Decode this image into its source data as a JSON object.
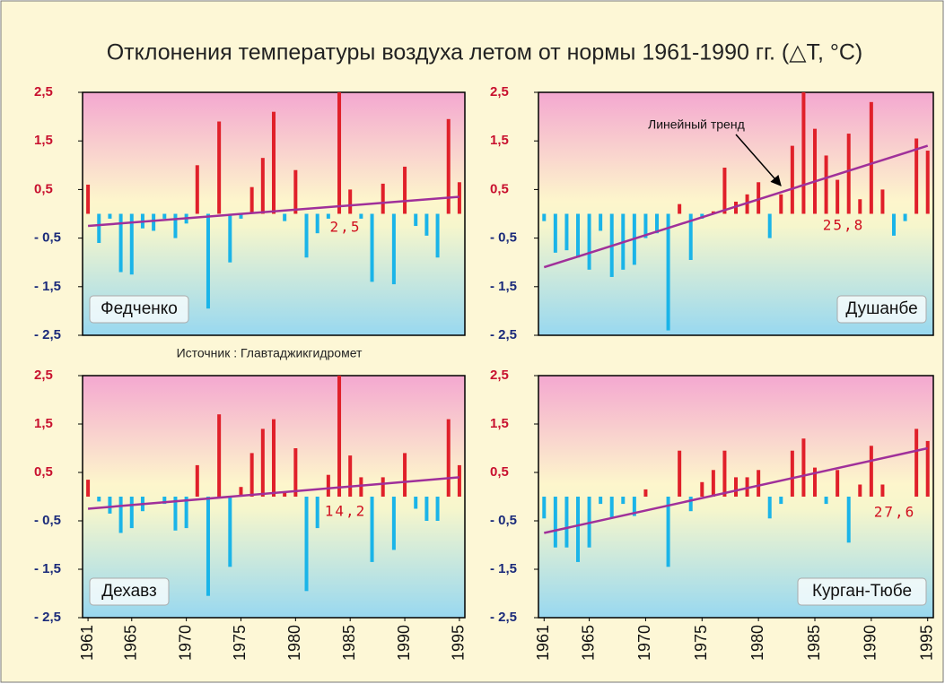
{
  "title": "Отклонения температуры воздуха летом от нормы 1961-1990 гг. (△T, °C)",
  "source": "Источник : Главтаджикгидромет",
  "chart_data": [
    {
      "type": "bar",
      "name": "Федченко",
      "label_corner": "bottom-left",
      "annotation": "2,5",
      "x": [
        1961,
        1962,
        1963,
        1964,
        1965,
        1966,
        1967,
        1968,
        1969,
        1970,
        1971,
        1972,
        1973,
        1974,
        1975,
        1976,
        1977,
        1978,
        1979,
        1980,
        1981,
        1982,
        1983,
        1984,
        1985,
        1986,
        1987,
        1988,
        1989,
        1990,
        1991,
        1992,
        1993,
        1994,
        1995
      ],
      "values": [
        0.6,
        -0.6,
        -0.1,
        -1.2,
        -1.25,
        -0.3,
        -0.35,
        -0.1,
        -0.5,
        -0.2,
        1.0,
        -1.95,
        1.9,
        -1.0,
        -0.1,
        0.55,
        1.15,
        2.1,
        -0.15,
        0.9,
        -0.9,
        -0.4,
        -0.1,
        2.5,
        0.5,
        -0.1,
        -1.4,
        0.62,
        -1.45,
        0.97,
        -0.25,
        -0.45,
        -0.9,
        1.95,
        0.65
      ],
      "positive_color": "#e0202a",
      "negative_color": "#1ab4e8",
      "trend": {
        "x": [
          1961,
          1995
        ],
        "values": [
          -0.25,
          0.35
        ],
        "color": "#a0309a"
      },
      "xlim": [
        1960.5,
        1995.5
      ],
      "ylim": [
        -2.5,
        2.5
      ],
      "yticks": [
        {
          "value": 2.5,
          "label": "2,5"
        },
        {
          "value": 1.5,
          "label": "1,5"
        },
        {
          "value": 0.5,
          "label": "0,5"
        },
        {
          "value": -0.5,
          "label": "- 0,5"
        },
        {
          "value": -1.5,
          "label": "- 1,5"
        },
        {
          "value": -2.5,
          "label": "- 2,5"
        }
      ]
    },
    {
      "type": "bar",
      "name": "Душанбе",
      "label_corner": "bottom-right",
      "annotation": "25,8",
      "trend_label": "Линейный тренд",
      "x": [
        1961,
        1962,
        1963,
        1964,
        1965,
        1966,
        1967,
        1968,
        1969,
        1970,
        1971,
        1972,
        1973,
        1974,
        1975,
        1976,
        1977,
        1978,
        1979,
        1980,
        1981,
        1982,
        1983,
        1984,
        1985,
        1986,
        1987,
        1988,
        1989,
        1990,
        1991,
        1992,
        1993,
        1994,
        1995
      ],
      "values": [
        -0.15,
        -0.8,
        -0.75,
        -0.9,
        -1.15,
        -0.35,
        -1.3,
        -1.15,
        -1.05,
        -0.5,
        -0.4,
        -2.4,
        0.2,
        -0.95,
        -0.1,
        0.05,
        0.95,
        0.25,
        0.4,
        0.65,
        -0.5,
        0.4,
        1.4,
        2.5,
        1.75,
        1.2,
        0.7,
        1.65,
        0.3,
        2.3,
        0.5,
        -0.45,
        -0.15,
        1.55,
        1.3
      ],
      "positive_color": "#e0202a",
      "negative_color": "#1ab4e8",
      "trend": {
        "x": [
          1961,
          1995
        ],
        "values": [
          -1.1,
          1.4
        ],
        "color": "#a0309a"
      },
      "xlim": [
        1960.5,
        1995.5
      ],
      "ylim": [
        -2.5,
        2.5
      ],
      "yticks": [
        {
          "value": 2.5,
          "label": "2,5"
        },
        {
          "value": 1.5,
          "label": "1,5"
        },
        {
          "value": 0.5,
          "label": "0,5"
        },
        {
          "value": -0.5,
          "label": "- 0,5"
        },
        {
          "value": -1.5,
          "label": "- 1,5"
        },
        {
          "value": -2.5,
          "label": "- 2,5"
        }
      ]
    },
    {
      "type": "bar",
      "name": "Дехавз",
      "label_corner": "bottom-left",
      "annotation": "14,2",
      "x": [
        1961,
        1962,
        1963,
        1964,
        1965,
        1966,
        1967,
        1968,
        1969,
        1970,
        1971,
        1972,
        1973,
        1974,
        1975,
        1976,
        1977,
        1978,
        1979,
        1980,
        1981,
        1982,
        1983,
        1984,
        1985,
        1986,
        1987,
        1988,
        1989,
        1990,
        1991,
        1992,
        1993,
        1994,
        1995
      ],
      "values": [
        0.35,
        -0.1,
        -0.35,
        -0.75,
        -0.65,
        -0.3,
        0,
        -0.15,
        -0.7,
        -0.65,
        0.65,
        -2.05,
        1.7,
        -1.45,
        0.2,
        0.9,
        1.4,
        1.6,
        0.1,
        1.0,
        -1.95,
        -0.65,
        0.45,
        2.5,
        0.85,
        0.4,
        -1.35,
        0.4,
        -1.1,
        0.9,
        -0.25,
        -0.5,
        -0.5,
        1.6,
        0.65
      ],
      "positive_color": "#e0202a",
      "negative_color": "#1ab4e8",
      "trend": {
        "x": [
          1961,
          1995
        ],
        "values": [
          -0.25,
          0.4
        ],
        "color": "#a0309a"
      },
      "xlim": [
        1960.5,
        1995.5
      ],
      "ylim": [
        -2.5,
        2.5
      ],
      "xticks": [
        1961,
        1965,
        1970,
        1975,
        1980,
        1985,
        1990,
        1995
      ],
      "yticks": [
        {
          "value": 2.5,
          "label": "2,5"
        },
        {
          "value": 1.5,
          "label": "1,5"
        },
        {
          "value": 0.5,
          "label": "0,5"
        },
        {
          "value": -0.5,
          "label": "- 0,5"
        },
        {
          "value": -1.5,
          "label": "- 1,5"
        },
        {
          "value": -2.5,
          "label": "- 2,5"
        }
      ]
    },
    {
      "type": "bar",
      "name": "Курган-Тюбе",
      "label_corner": "bottom-right",
      "annotation": "27,6",
      "x": [
        1961,
        1962,
        1963,
        1964,
        1965,
        1966,
        1967,
        1968,
        1969,
        1970,
        1971,
        1972,
        1973,
        1974,
        1975,
        1976,
        1977,
        1978,
        1979,
        1980,
        1981,
        1982,
        1983,
        1984,
        1985,
        1986,
        1987,
        1988,
        1989,
        1990,
        1991,
        1992,
        1993,
        1994,
        1995
      ],
      "values": [
        -0.45,
        -1.05,
        -1.05,
        -1.35,
        -1.05,
        -0.15,
        -0.45,
        -0.15,
        -0.4,
        0.15,
        0,
        -1.45,
        0.95,
        -0.3,
        0.3,
        0.55,
        0.95,
        0.4,
        0.4,
        0.55,
        -0.45,
        -0.15,
        0.95,
        1.2,
        0.6,
        -0.15,
        0.55,
        -0.95,
        0.25,
        1.05,
        0.25,
        0,
        0,
        1.4,
        1.15
      ],
      "positive_color": "#e0202a",
      "negative_color": "#1ab4e8",
      "trend": {
        "x": [
          1961,
          1995
        ],
        "values": [
          -0.75,
          1.0
        ],
        "color": "#a0309a"
      },
      "xlim": [
        1960.5,
        1995.5
      ],
      "ylim": [
        -2.5,
        2.5
      ],
      "xticks": [
        1961,
        1965,
        1970,
        1975,
        1980,
        1985,
        1990,
        1995
      ],
      "yticks": [
        {
          "value": 2.5,
          "label": "2,5"
        },
        {
          "value": 1.5,
          "label": "1,5"
        },
        {
          "value": 0.5,
          "label": "0,5"
        },
        {
          "value": -0.5,
          "label": "- 0,5"
        },
        {
          "value": -1.5,
          "label": "- 1,5"
        },
        {
          "value": -2.5,
          "label": "- 2,5"
        }
      ]
    }
  ]
}
